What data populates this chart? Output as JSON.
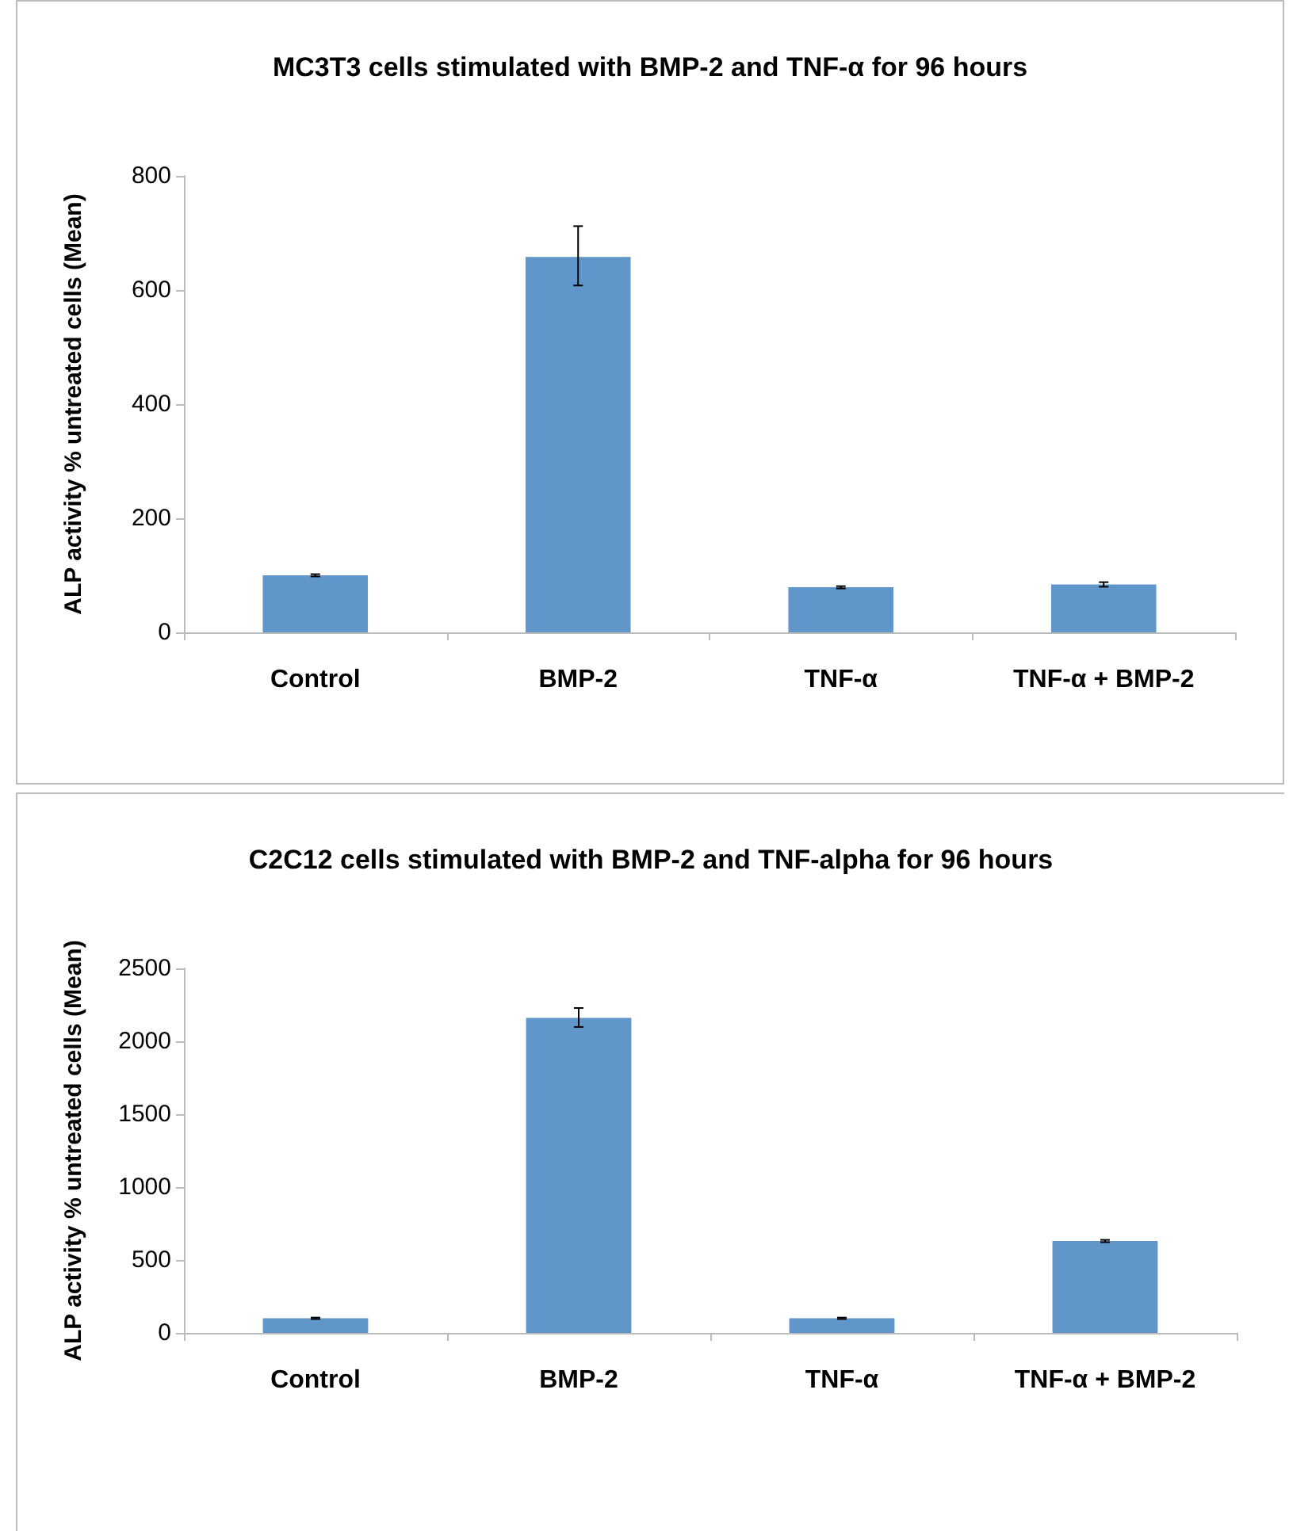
{
  "chart_data": [
    {
      "type": "bar",
      "title": "MC3T3 cells stimulated with BMP-2 and TNF-α for 96 hours",
      "ylabel": "ALP activity % untreated cells (Mean)",
      "categories": [
        "Control",
        "BMP-2",
        "TNF-α",
        "TNF-α + BMP-2"
      ],
      "values": [
        100,
        658,
        79,
        84
      ],
      "errors": [
        2,
        [
          608,
          712
        ],
        2,
        4
      ],
      "color": "#6096c9",
      "ylim": [
        0,
        800
      ],
      "yticks": [
        0,
        200,
        400,
        600,
        800
      ]
    },
    {
      "type": "bar",
      "title": "C2C12 cells stimulated with BMP-2 and TNF-alpha for 96 hours",
      "ylabel": "ALP activity % untreated cells (Mean)",
      "categories": [
        "Control",
        "BMP-2",
        "TNF-α",
        "TNF-α + BMP-2"
      ],
      "values": [
        100,
        2160,
        100,
        630
      ],
      "errors": [
        5,
        [
          2098,
          2228
        ],
        5,
        8
      ],
      "color": "#6096c9",
      "ylim": [
        0,
        2500
      ],
      "yticks": [
        0,
        500,
        1000,
        1500,
        2000,
        2500
      ]
    }
  ]
}
